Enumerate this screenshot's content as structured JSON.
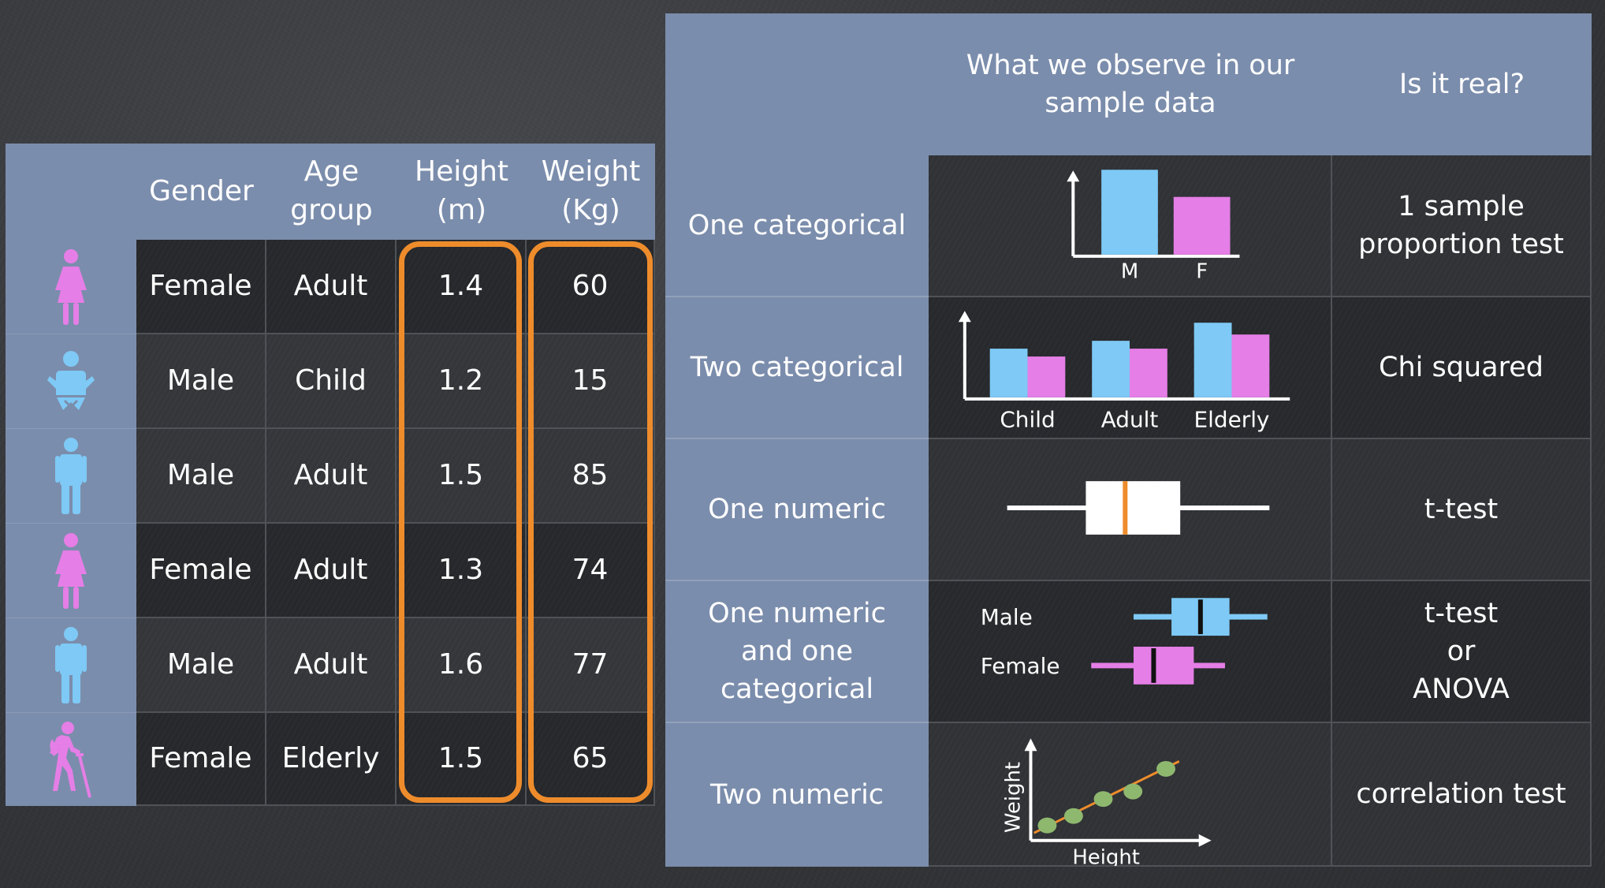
{
  "left_table": {
    "headers": [
      "Gender",
      "Age group",
      "Height (m)",
      "Weight (Kg)"
    ],
    "rows": [
      {
        "icon": "female-adult-icon",
        "gender": "Female",
        "age_group": "Adult",
        "height": "1.4",
        "weight": "60"
      },
      {
        "icon": "male-child-icon",
        "gender": "Male",
        "age_group": "Child",
        "height": "1.2",
        "weight": "15"
      },
      {
        "icon": "male-adult-icon",
        "gender": "Male",
        "age_group": "Adult",
        "height": "1.5",
        "weight": "85"
      },
      {
        "icon": "female-adult-icon",
        "gender": "Female",
        "age_group": "Adult",
        "height": "1.3",
        "weight": "74"
      },
      {
        "icon": "male-adult-icon",
        "gender": "Male",
        "age_group": "Adult",
        "height": "1.6",
        "weight": "77"
      },
      {
        "icon": "female-elderly-icon",
        "gender": "Female",
        "age_group": "Elderly",
        "height": "1.5",
        "weight": "65"
      }
    ],
    "highlight_color": "#ee8c2c"
  },
  "right_table": {
    "headers": [
      "",
      "What we observe in our sample data",
      "Is it real?"
    ],
    "rows": [
      {
        "label": "One categorical",
        "test": "1 sample proportion test"
      },
      {
        "label": "Two categorical",
        "test": "Chi squared"
      },
      {
        "label": "One numeric",
        "test": "t-test"
      },
      {
        "label": "One numeric and one categorical",
        "test": "t-test or ANOVA"
      },
      {
        "label": "Two numeric",
        "test": "correlation test"
      }
    ]
  },
  "chart_data": [
    {
      "type": "bar",
      "categories": [
        "M",
        "F"
      ],
      "values": [
        1.0,
        0.68
      ],
      "colors": [
        "#7ec9f5",
        "#e57ee6"
      ]
    },
    {
      "type": "bar",
      "categories": [
        "Child",
        "Adult",
        "Elderly"
      ],
      "series": [
        {
          "values": [
            0.62,
            0.72,
            0.95
          ],
          "color": "#7ec9f5"
        },
        {
          "values": [
            0.52,
            0.62,
            0.8
          ],
          "color": "#e57ee6"
        }
      ]
    },
    {
      "type": "boxplot",
      "whisker": [
        0,
        1
      ],
      "box": [
        0.3,
        0.66
      ],
      "median": 0.45,
      "box_color": "#ffffff",
      "median_color": "#ee8c2c"
    },
    {
      "type": "boxplot",
      "series": [
        {
          "name": "Male",
          "whisker": [
            0.25,
            0.85
          ],
          "box": [
            0.42,
            0.68
          ],
          "median": 0.55,
          "color": "#7ec9f5"
        },
        {
          "name": "Female",
          "whisker": [
            0.06,
            0.66
          ],
          "box": [
            0.25,
            0.52
          ],
          "median": 0.34,
          "color": "#e57ee6"
        }
      ]
    },
    {
      "type": "scatter",
      "xlabel": "Height",
      "ylabel": "Weight",
      "points": [
        [
          0.1,
          0.16
        ],
        [
          0.26,
          0.26
        ],
        [
          0.44,
          0.44
        ],
        [
          0.62,
          0.52
        ],
        [
          0.82,
          0.76
        ]
      ],
      "point_color": "#8fb86f",
      "trend_color": "#ee8c2c"
    }
  ]
}
